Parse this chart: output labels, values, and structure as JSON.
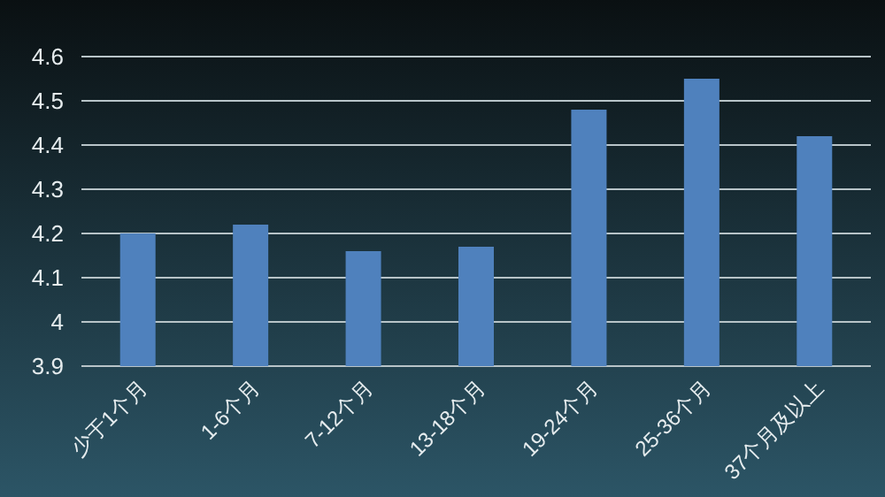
{
  "chart_data": {
    "type": "bar",
    "categories": [
      "少于1个月",
      "1-6个月",
      "7-12个月",
      "13-18个月",
      "19-24个月",
      "25-36个月",
      "37个月及以上"
    ],
    "values": [
      4.2,
      4.22,
      4.16,
      4.17,
      4.48,
      4.55,
      4.42
    ],
    "color": "#4f81bd",
    "ylim": [
      3.9,
      4.6
    ],
    "yticks": [
      3.9,
      4,
      4.1,
      4.2,
      4.3,
      4.4,
      4.5,
      4.6
    ],
    "grid": "y"
  }
}
